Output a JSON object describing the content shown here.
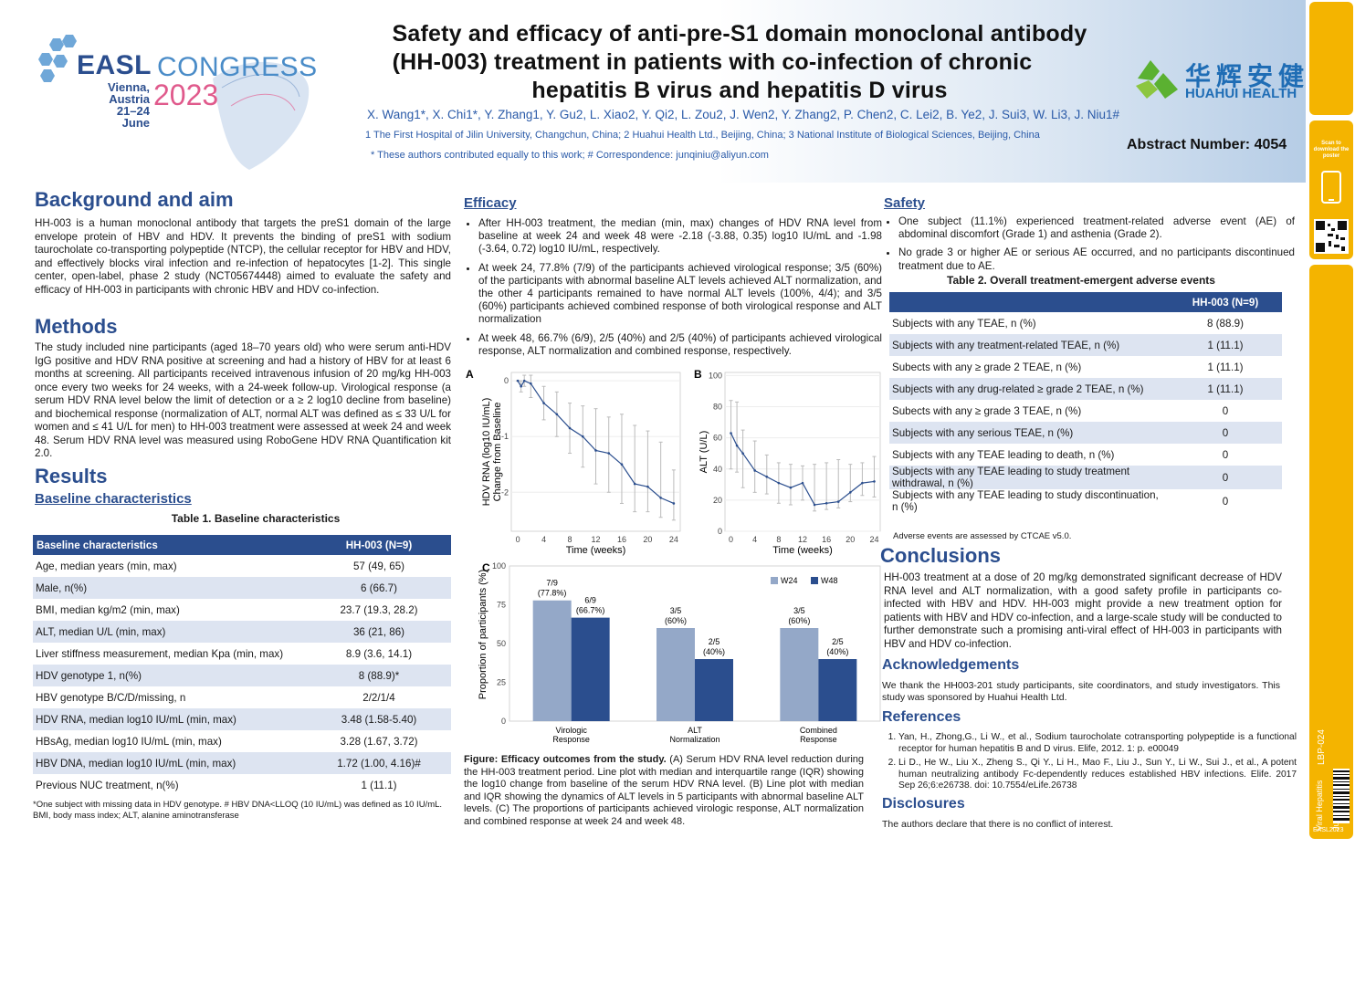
{
  "header": {
    "title_line1": "Safety and efficacy of anti-pre-S1 domain monoclonal antibody",
    "title_line2": "(HH-003) treatment in patients with co-infection of chronic",
    "title_line3": "hepatitis B virus and hepatitis D virus",
    "authors": "X. Wang1*, X. Chi1*, Y. Zhang1, Y. Gu2, L. Xiao2, Y. Qi2, L. Zou2, J. Wen2, Y. Zhang2, P. Chen2, C. Lei2, B. Ye2, J. Sui3, W. Li3, J. Niu1#",
    "affiliations": "1 The First Hospital of Jilin University, Changchun, China; 2 Huahui Health Ltd., Beijing, China; 3 National Institute of Biological Sciences, Beijing, China",
    "correspondence": "* These authors contributed equally to this work; # Correspondence: junqiniu@aliyun.com",
    "abstract_number": "Abstract Number: 4054",
    "logo_easl": "EASL",
    "logo_congress": "CONGRESS",
    "logo_location": "Vienna, Austria",
    "logo_dates": "21–24 June",
    "logo_year": "2023",
    "sponsor_cn": "华辉安健",
    "sponsor_en": "HUAHUI HEALTH"
  },
  "side": {
    "scan_text": "Scan to download the poster",
    "topic": "Viral Hepatitis",
    "author": "Junqi Niu",
    "poster_id": "LBP-024",
    "footer": "EASL2023"
  },
  "background": {
    "heading": "Background and aim",
    "text": "HH-003 is a human monoclonal antibody that targets the preS1 domain of the large envelope protein of HBV and HDV. It prevents the binding of preS1 with sodium taurocholate co-transporting polypeptide (NTCP), the cellular receptor for HBV and HDV, and effectively blocks viral infection and re-infection of hepatocytes [1-2]. This single center, open-label, phase 2 study (NCT05674448) aimed to evaluate the safety and efficacy of HH-003 in participants with chronic HBV and HDV co-infection."
  },
  "methods": {
    "heading": "Methods",
    "text": "The study included nine participants (aged 18–70 years old) who were serum anti-HDV IgG positive and HDV RNA positive at screening and had a history of HBV for at least 6 months at screening. All participants received intravenous infusion of 20 mg/kg HH-003 once every two weeks for 24 weeks, with a 24-week follow-up. Virological response (a serum HDV RNA level below the limit of detection or a ≥ 2 log10 decline from baseline) and biochemical response (normalization of ALT, normal ALT was defined as ≤ 33 U/L for women and ≤ 41 U/L for men) to HH-003 treatment were assessed at week 24 and week 48. Serum HDV RNA level was measured using RoboGene HDV RNA Quantification kit 2.0."
  },
  "results": {
    "heading": "Results",
    "subheading": "Baseline characteristics",
    "table_caption": "Table 1. Baseline characteristics",
    "table_headers": [
      "Baseline characteristics",
      "HH-003 (N=9)"
    ],
    "table_rows": [
      [
        "Age, median years (min, max)",
        "57 (49, 65)"
      ],
      [
        "Male, n(%)",
        "6 (66.7)"
      ],
      [
        "BMI, median kg/m2 (min, max)",
        "23.7 (19.3, 28.2)"
      ],
      [
        "ALT, median U/L (min, max)",
        "36 (21, 86)"
      ],
      [
        "Liver stiffness measurement, median Kpa (min, max)",
        "8.9 (3.6, 14.1)"
      ],
      [
        "HDV genotype 1, n(%)",
        "8 (88.9)*"
      ],
      [
        "HBV genotype B/C/D/missing, n",
        "2/2/1/4"
      ],
      [
        "HDV RNA, median log10 IU/mL (min, max)",
        "3.48 (1.58-5.40)"
      ],
      [
        "HBsAg, median log10 IU/mL (min, max)",
        "3.28 (1.67, 3.72)"
      ],
      [
        "HBV DNA, median log10 IU/mL (min, max)",
        "1.72 (1.00, 4.16)#"
      ],
      [
        "Previous NUC treatment, n(%)",
        "1 (11.1)"
      ]
    ],
    "table_note": "*One subject with missing data in HDV genotype. # HBV DNA<LLOQ (10 IU/mL) was defined as 10 IU/mL. BMI, body mass index; ALT, alanine aminotransferase"
  },
  "efficacy": {
    "heading": "Efficacy",
    "bullets": [
      "After HH-003 treatment, the median (min, max) changes of HDV RNA level from baseline at week 24 and week 48 were -2.18 (-3.88, 0.35) log10 IU/mL and -1.98 (-3.64, 0.72) log10 IU/mL, respectively.",
      "At week 24, 77.8% (7/9) of the participants achieved virological response; 3/5 (60%) of the participants with abnormal baseline ALT levels achieved ALT normalization, and the other 4 participants remained to have normal ALT levels (100%, 4/4); and 3/5 (60%) participants achieved combined response of both virological response and ALT normalization",
      "At week 48, 66.7% (6/9), 2/5 (40%) and 2/5 (40%) of participants achieved virological response, ALT normalization and combined response, respectively."
    ],
    "figure_caption_bold": "Figure: Efficacy outcomes from the study.",
    "figure_caption": " (A) Serum HDV RNA level reduction during the HH-003 treatment period. Line plot with median and interquartile range (IQR) showing the log10 change from baseline of the serum HDV RNA level. (B) Line plot with median and IQR showing the dynamics of ALT levels in 5 participants with abnormal baseline ALT levels. (C) The proportions of participants achieved virologic response, ALT normalization and combined response at week 24 and week 48."
  },
  "chart_data": [
    {
      "type": "line",
      "panel": "A",
      "xlabel": "Time (weeks)",
      "ylabel_line1": "HDV RNA (log10 IU/mL)",
      "ylabel_line2": "Change from Baseline",
      "xticks": [
        0,
        4,
        8,
        12,
        16,
        20,
        24
      ],
      "yticks": [
        0,
        -1,
        -2
      ],
      "xlim": [
        -1,
        25
      ],
      "ylim": [
        -2.7,
        0.15
      ],
      "x": [
        0,
        0.5,
        1,
        2,
        4,
        6,
        8,
        10,
        12,
        14,
        16,
        18,
        20,
        22,
        24
      ],
      "median": [
        0,
        -0.1,
        0,
        -0.05,
        -0.4,
        -0.6,
        -0.85,
        -1.0,
        -1.25,
        -1.3,
        -1.5,
        -1.85,
        -1.9,
        -2.1,
        -2.2
      ],
      "q1": [
        0,
        -0.2,
        -0.1,
        -0.3,
        -0.7,
        -1.0,
        -1.3,
        -1.55,
        -1.85,
        -2.0,
        -2.2,
        -2.35,
        -2.35,
        -2.45,
        -2.5
      ],
      "q3": [
        0,
        0.0,
        0.1,
        0.1,
        -0.1,
        -0.2,
        -0.4,
        -0.45,
        -0.5,
        -0.65,
        -0.6,
        -0.8,
        -0.9,
        -1.1,
        -1.6
      ]
    },
    {
      "type": "line",
      "panel": "B",
      "xlabel": "Time (weeks)",
      "ylabel": "ALT (U/L)",
      "xticks": [
        0,
        4,
        8,
        12,
        16,
        20,
        24
      ],
      "yticks": [
        0,
        20,
        40,
        60,
        80,
        100
      ],
      "xlim": [
        -1,
        25
      ],
      "ylim": [
        0,
        102
      ],
      "x": [
        0,
        1,
        2,
        4,
        6,
        8,
        10,
        12,
        14,
        16,
        18,
        20,
        22,
        24
      ],
      "median": [
        63,
        55,
        50,
        39,
        35,
        31,
        28,
        31,
        17,
        18,
        19,
        25,
        31,
        32
      ],
      "q1": [
        40,
        38,
        28,
        25,
        24,
        18,
        17,
        20,
        13,
        14,
        15,
        19,
        23,
        22
      ],
      "q3": [
        84,
        83,
        65,
        58,
        49,
        44,
        43,
        42,
        43,
        44,
        46,
        43,
        44,
        48
      ]
    },
    {
      "type": "bar",
      "panel": "C",
      "ylabel": "Proportion of participants (%)",
      "ylim": [
        0,
        100
      ],
      "yticks": [
        0,
        25,
        50,
        75,
        100
      ],
      "categories": [
        "Virologic Response",
        "ALT Normalization",
        "Combined Response"
      ],
      "series": [
        {
          "name": "W24",
          "values": [
            77.8,
            60,
            60
          ],
          "labels_top": [
            "7/9",
            "3/5",
            "3/5"
          ],
          "labels_bottom": [
            "(77.8%)",
            "(60%)",
            "(60%)"
          ],
          "color": "#94a8c8"
        },
        {
          "name": "W48",
          "values": [
            66.7,
            40,
            40
          ],
          "labels_top": [
            "6/9",
            "2/5",
            "2/5"
          ],
          "labels_bottom": [
            "(66.7%)",
            "(40%)",
            "(40%)"
          ],
          "color": "#2b4e8e"
        }
      ]
    }
  ],
  "safety": {
    "heading": "Safety",
    "bullets": [
      "One subject (11.1%) experienced treatment-related adverse event (AE) of abdominal discomfort (Grade 1) and asthenia (Grade 2).",
      "No grade 3 or higher AE or serious AE occurred, and no participants discontinued treatment due to AE."
    ],
    "table_caption": "Table 2. Overall treatment-emergent adverse events",
    "table_headers": [
      "",
      "HH-003 (N=9)"
    ],
    "table_rows": [
      [
        "Subjects with any TEAE, n (%)",
        "8 (88.9)"
      ],
      [
        "Subjects with any treatment-related TEAE, n (%)",
        "1 (11.1)"
      ],
      [
        "Subects with any ≥ grade 2 TEAE, n (%)",
        "1 (11.1)"
      ],
      [
        "Subjects with any drug-related ≥ grade 2 TEAE, n (%)",
        "1 (11.1)"
      ],
      [
        "Subects with any ≥ grade 3 TEAE, n (%)",
        "0"
      ],
      [
        "Subjects with any serious TEAE, n (%)",
        "0"
      ],
      [
        "Subjects with any TEAE leading to death, n (%)",
        "0"
      ],
      [
        "Subjects with any TEAE leading to study treatment withdrawal, n (%)",
        "0"
      ],
      [
        "Subjects with any TEAE leading to study discontinuation, n (%)",
        "0"
      ]
    ],
    "table_note": "Adverse events are assessed by CTCAE v5.0."
  },
  "conclusions": {
    "heading": "Conclusions",
    "text": "HH-003 treatment at a dose of 20 mg/kg demonstrated significant decrease of HDV RNA level and ALT normalization, with a good safety profile in participants co-infected with HBV and HDV. HH-003 might provide a new treatment option for patients with HBV and HDV co-infection, and a large-scale study will be conducted to further demonstrate such a promising anti-viral effect of HH-003 in participants with HBV and HDV co-infection."
  },
  "acknowledgements": {
    "heading": "Acknowledgements",
    "text": "We thank the HH003-201 study participants, site coordinators, and study investigators. This study was sponsored by Huahui Health Ltd."
  },
  "references": {
    "heading": "References",
    "items": [
      "Yan, H., Zhong,G., Li W., et al., Sodium taurocholate cotransporting polypeptide is a functional receptor for human hepatitis B and D virus. Elife, 2012. 1: p. e00049",
      "Li D., He W., Liu X., Zheng S., Qi Y., Li H., Mao F., Liu J., Sun Y., Li W., Sui J., et al., A potent human neutralizing antibody Fc-dependently reduces established HBV infections. Elife. 2017 Sep 26;6:e26738. doi: 10.7554/eLife.26738"
    ]
  },
  "disclosures": {
    "heading": "Disclosures",
    "text": "The authors declare that there is no conflict of interest."
  }
}
